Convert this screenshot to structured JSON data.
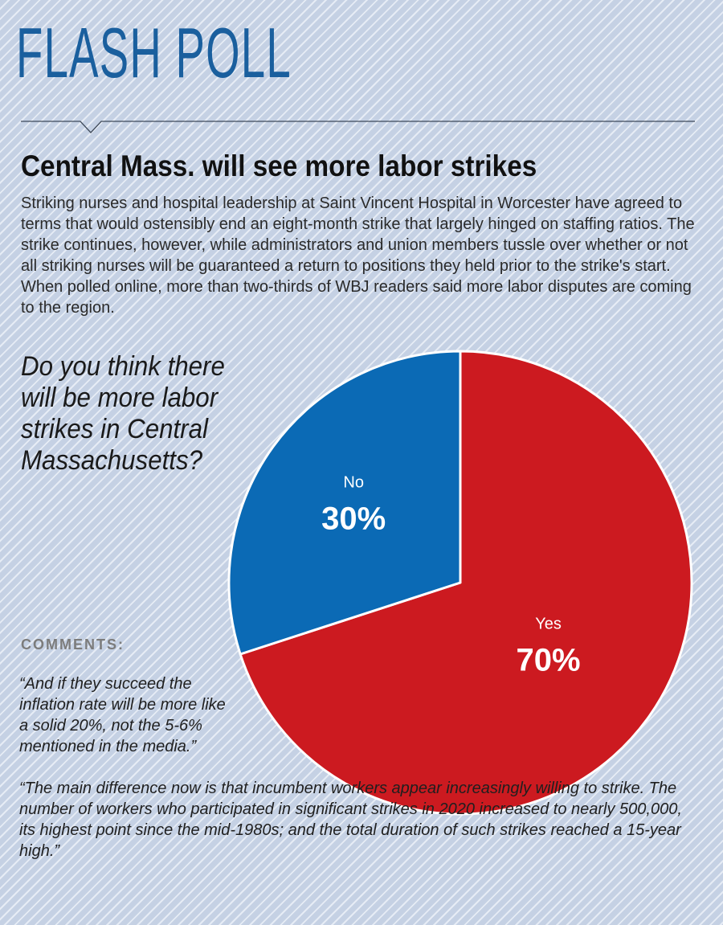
{
  "header": {
    "masthead": "FLASH POLL",
    "headline": "Central Mass. will see more labor strikes",
    "intro": "Striking nurses and hospital leadership at Saint Vincent Hospital in Worcester have agreed to terms that would ostensibly end an eight-month strike that largely hinged on staffing ratios. The strike continues, however, while administrators and union members tussle over whether or not all striking nurses will be guaranteed a return to positions they held prior to the strike's start. When polled online, more than two-thirds of WBJ readers said more labor disputes are coming to the region."
  },
  "poll": {
    "question": "Do you think there will be more labor strikes in Central Massachusetts?"
  },
  "comments": {
    "heading": "COMMENTS:",
    "items": [
      "“And if they succeed the inflation rate will be more like a solid 20%, not the 5-6% mentioned in the media.”",
      "“The main difference now is that incumbent workers appear increasingly willing to strike. The number of workers who participated in significant strikes in 2020 increased to nearly 500,000, its highest point since the mid-1980s; and the total duration of such strikes reached a 15-year high.”"
    ]
  },
  "colors": {
    "masthead": "#1a5f9e",
    "yes": "#cc1a20",
    "no": "#0b6ab5"
  },
  "chart_data": {
    "type": "pie",
    "title": "",
    "slices": [
      {
        "label": "Yes",
        "value": 70,
        "display": "70%",
        "color": "#cc1a20"
      },
      {
        "label": "No",
        "value": 30,
        "display": "30%",
        "color": "#0b6ab5"
      }
    ]
  }
}
